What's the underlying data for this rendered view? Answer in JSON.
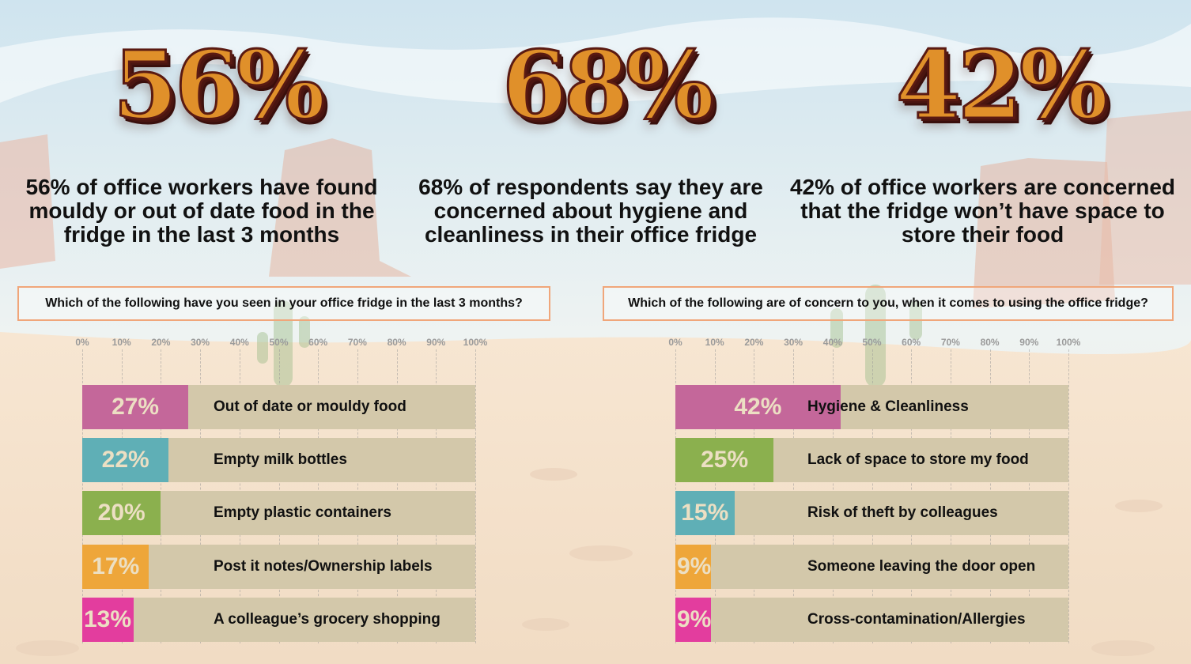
{
  "headline_stats": [
    {
      "big": "56%",
      "text": "56% of office workers have found mouldy or out of date food in the fridge in the last 3 months"
    },
    {
      "big": "68%",
      "text": "68% of respondents say they are concerned about hygiene and cleanliness in their office fridge"
    },
    {
      "big": "42%",
      "text": "42% of office workers are concerned that the fridge won’t have space to store their food"
    }
  ],
  "colors": {
    "pink": "#c4679a",
    "teal": "#5fafb6",
    "green": "#8bb04e",
    "orange": "#eea63a",
    "magenta": "#e33d9e",
    "track": "#d3c8aa"
  },
  "chart_data": [
    {
      "type": "bar",
      "orientation": "horizontal",
      "title": "Which of the following have you seen in your office fridge in the last 3 months?",
      "ticks": [
        "0%",
        "10%",
        "20%",
        "30%",
        "40%",
        "50%",
        "60%",
        "70%",
        "80%",
        "90%",
        "100%"
      ],
      "xlim": [
        0,
        100
      ],
      "categories": [
        "Out of date or mouldy food",
        "Empty milk bottles",
        "Empty plastic containers",
        "Post it notes/Ownership labels",
        "A colleague’s grocery shopping"
      ],
      "values": [
        27,
        22,
        20,
        17,
        13
      ],
      "value_labels": [
        "27%",
        "22%",
        "20%",
        "17%",
        "13%"
      ],
      "bar_colors": [
        "#c4679a",
        "#5fafb6",
        "#8bb04e",
        "#eea63a",
        "#e33d9e"
      ]
    },
    {
      "type": "bar",
      "orientation": "horizontal",
      "title": "Which of the following are of concern to you, when it comes to using the office fridge?",
      "ticks": [
        "0%",
        "10%",
        "20%",
        "30%",
        "40%",
        "50%",
        "60%",
        "70%",
        "80%",
        "90%",
        "100%"
      ],
      "xlim": [
        0,
        100
      ],
      "categories": [
        "Hygiene & Cleanliness",
        "Lack of space to store my food",
        "Risk of theft by colleagues",
        "Someone leaving the door open",
        "Cross-contamination/Allergies"
      ],
      "values": [
        42,
        25,
        15,
        9,
        9
      ],
      "value_labels": [
        "42%",
        "25%",
        "15%",
        "9%",
        "9%"
      ],
      "bar_colors": [
        "#c4679a",
        "#8bb04e",
        "#5fafb6",
        "#eea63a",
        "#e33d9e"
      ]
    }
  ]
}
